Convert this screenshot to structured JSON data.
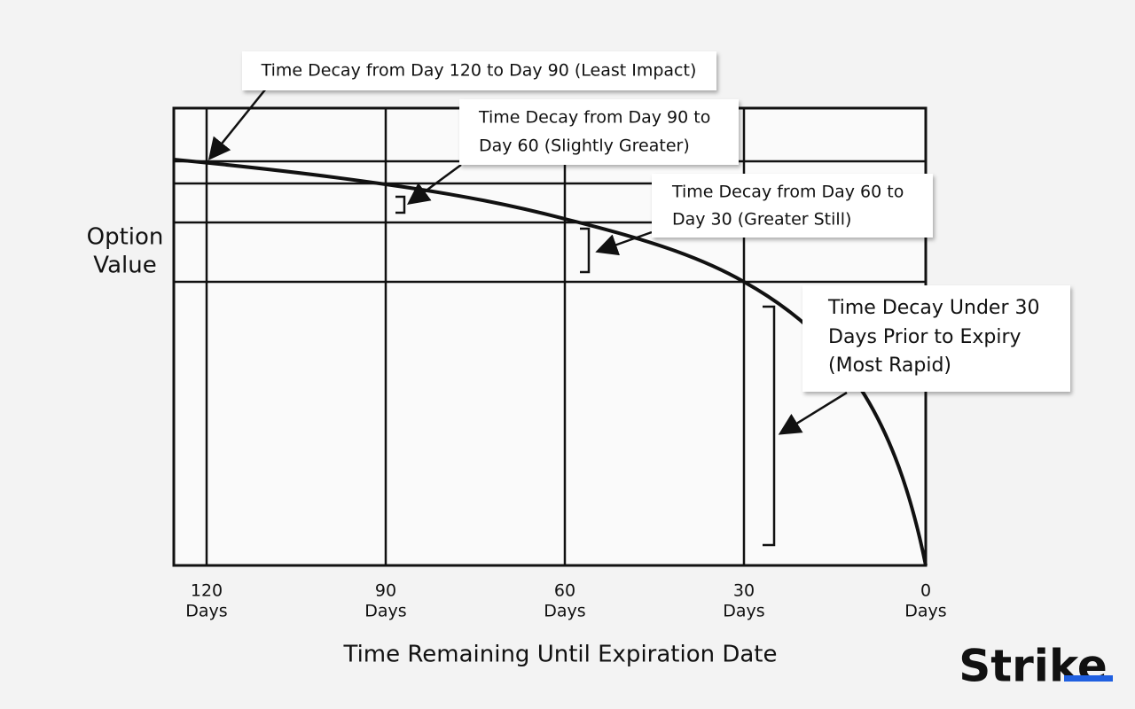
{
  "callouts": [
    {
      "lines": [
        "Time Decay from Day 120 to Day 90 (Least Impact)"
      ]
    },
    {
      "lines": [
        "Time Decay from Day 90 to",
        "Day 60 (Slightly Greater)"
      ]
    },
    {
      "lines": [
        "Time Decay from Day 60 to",
        "Day 30 (Greater Still)"
      ]
    },
    {
      "lines": [
        "Time Decay Under 30",
        "Days Prior to Expiry",
        "(Most Rapid)"
      ]
    }
  ],
  "y_axis_label": [
    "Option",
    "Value"
  ],
  "x_ticks": [
    {
      "number": "120",
      "unit": "Days"
    },
    {
      "number": "90",
      "unit": "Days"
    },
    {
      "number": "60",
      "unit": "Days"
    },
    {
      "number": "30",
      "unit": "Days"
    },
    {
      "number": "0",
      "unit": "Days"
    }
  ],
  "x_axis_label": "Time Remaining Until Expiration Date",
  "logo": "Strike"
}
